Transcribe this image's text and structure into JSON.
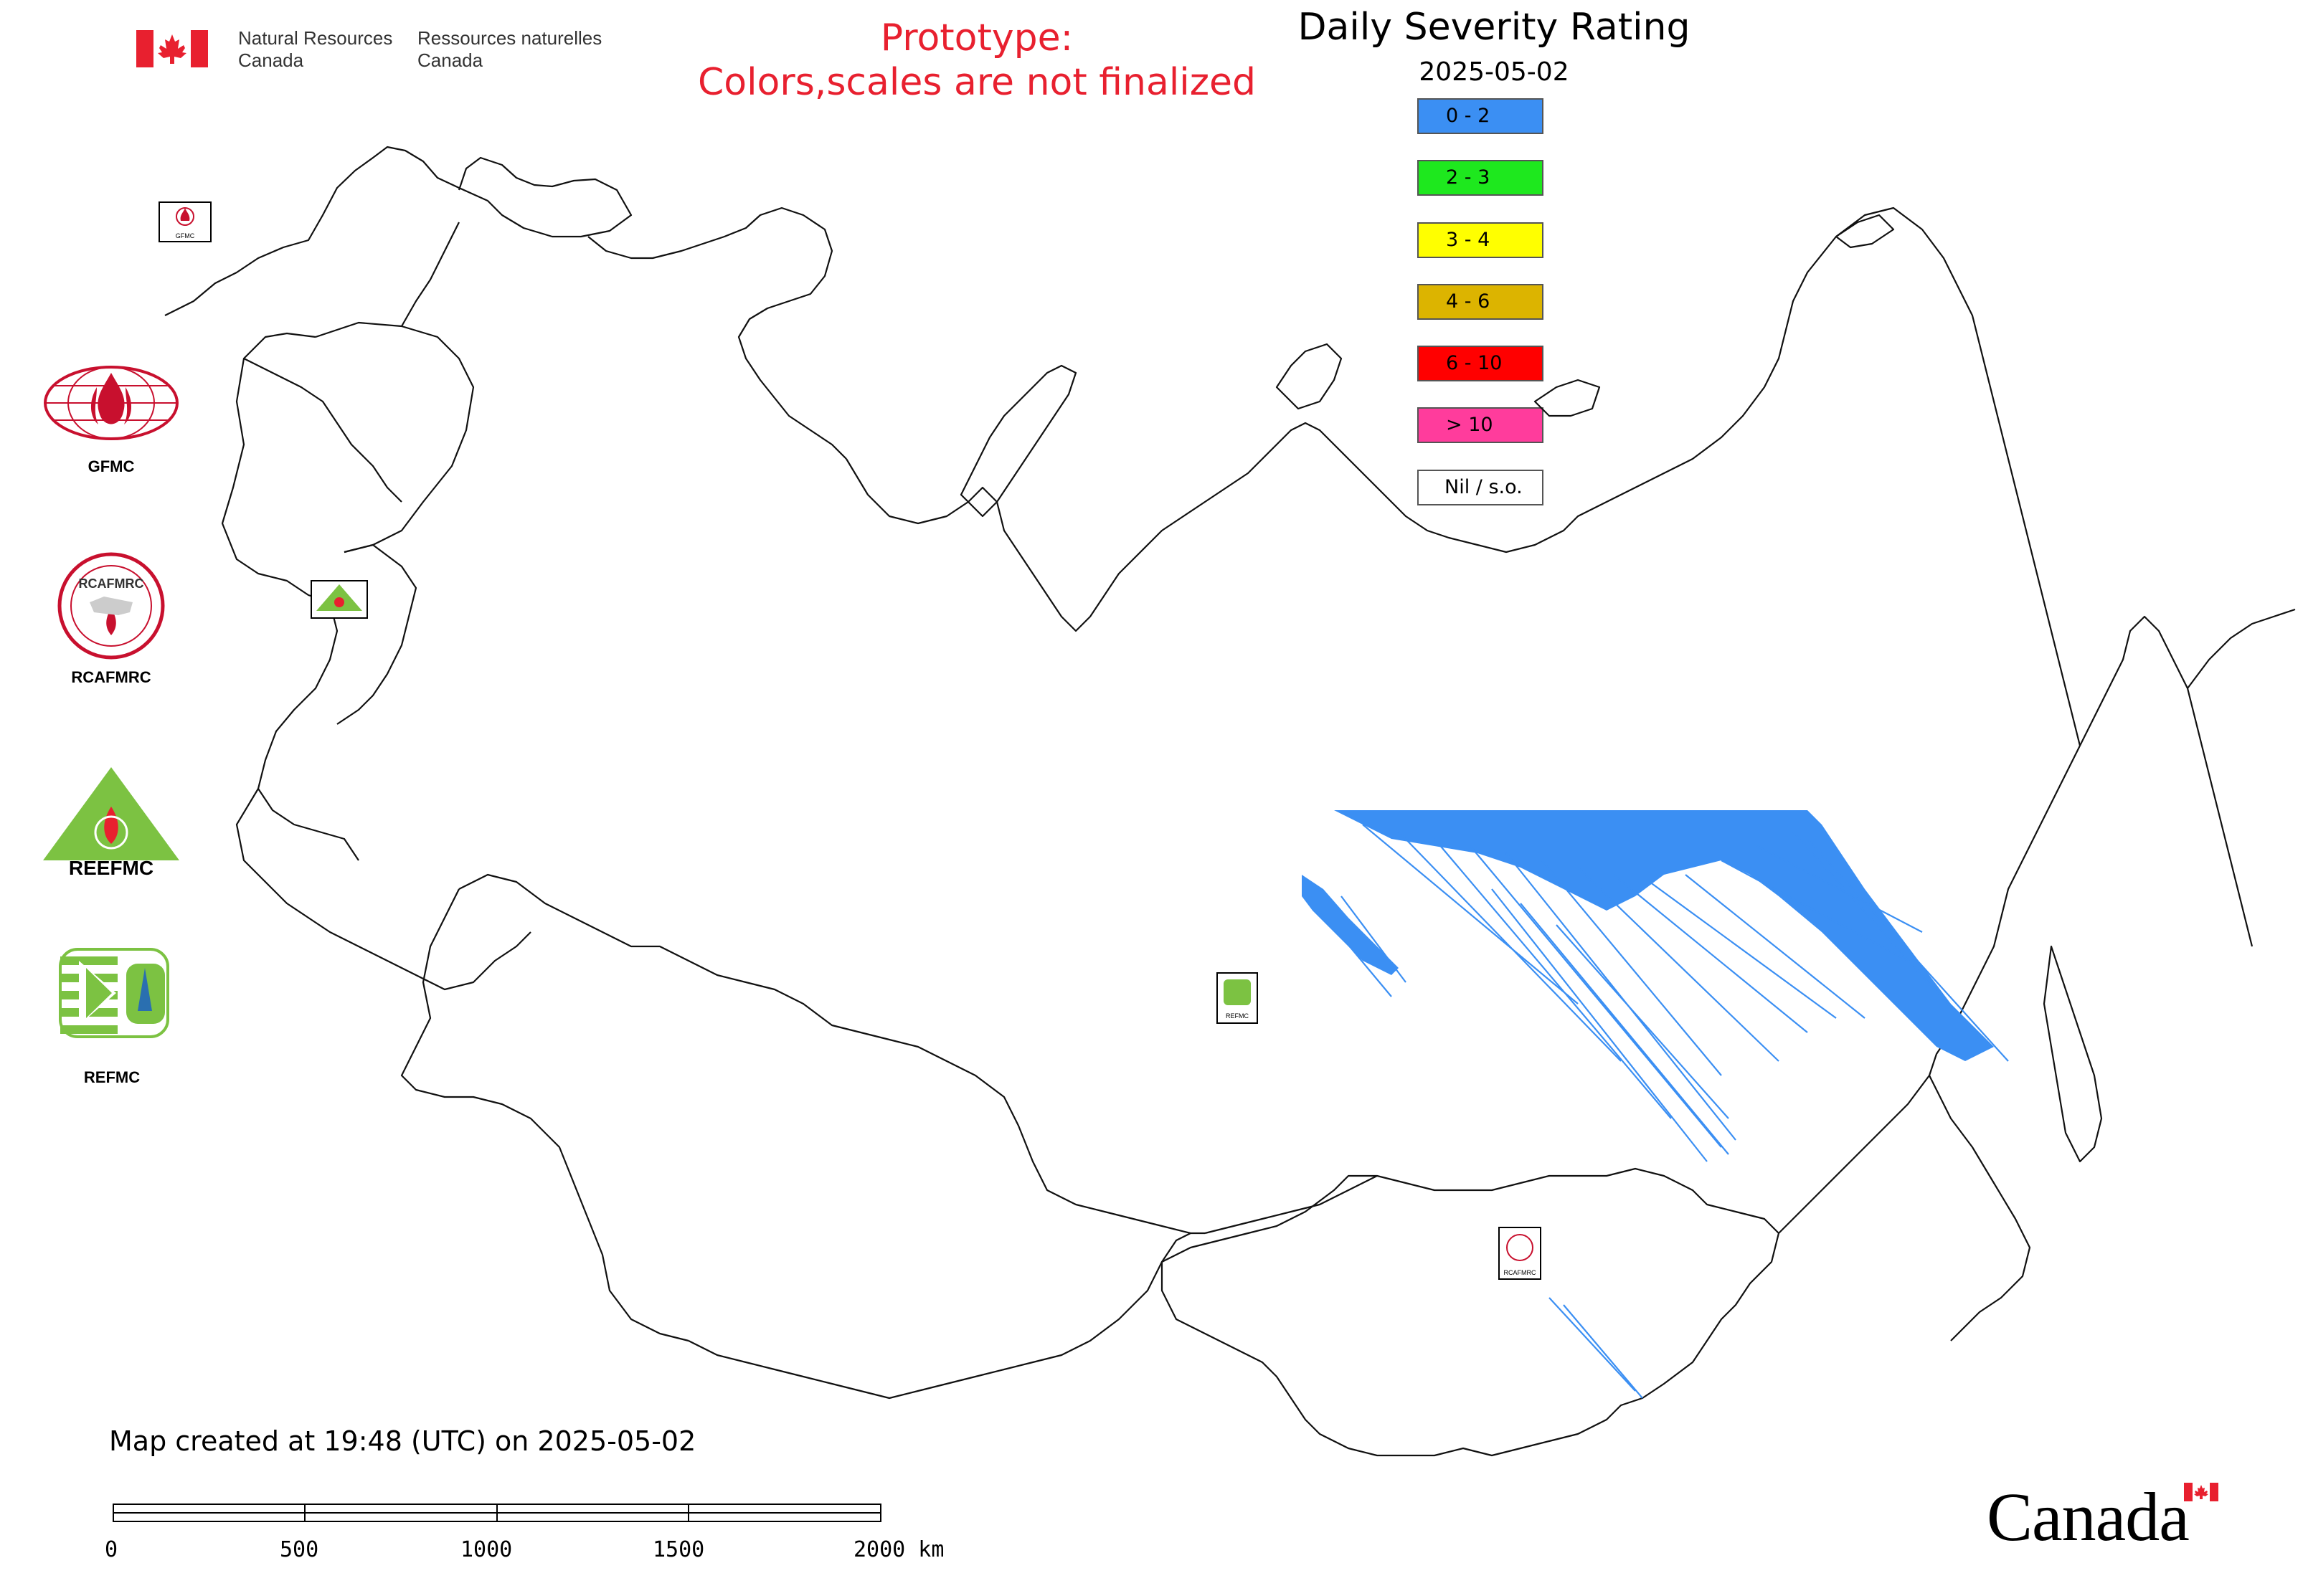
{
  "header": {
    "dept_en": "Natural Resources\nCanada",
    "dept_fr": "Ressources naturelles\nCanada",
    "prototype_line1": "Prototype:",
    "prototype_line2": "Colors,scales are not finalized"
  },
  "map": {
    "title": "Daily Severity Rating",
    "date": "2025-05-02",
    "created_note": "Map created at 19:48 (UTC) on 2025-05-02"
  },
  "legend": [
    {
      "label": "0 - 2",
      "color": "#3b8ff3"
    },
    {
      "label": "2 - 3",
      "color": "#1ee81e"
    },
    {
      "label": "3 - 4",
      "color": "#ffff00"
    },
    {
      "label": "4 - 6",
      "color": "#dcb400"
    },
    {
      "label": "6 - 10",
      "color": "#ff0000"
    },
    {
      "label": "> 10",
      "color": "#ff3c9c"
    },
    {
      "label": "Nil / s.o.",
      "color": "#ffffff"
    }
  ],
  "orgs": [
    {
      "label": "GFMC"
    },
    {
      "label": "RCAFMRC"
    },
    {
      "label": "REEFMC"
    },
    {
      "label": "REFMC"
    }
  ],
  "logo_text": {
    "gfmc_small": "GFMC",
    "rcafmrc_ring": "RCAFMRC",
    "reefmc_word": "REEFMC",
    "refmc_small": "REFMC",
    "rcafmrc_small": "RCAFMRC"
  },
  "scale_bar": {
    "ticks": [
      "0",
      "500",
      "1000",
      "1500",
      "2000 km"
    ]
  },
  "wordmark": "Canada",
  "colors": {
    "prototype_red": "#e8202f",
    "data_blue": "#3b8ff3",
    "flag_red": "#e8202f"
  }
}
